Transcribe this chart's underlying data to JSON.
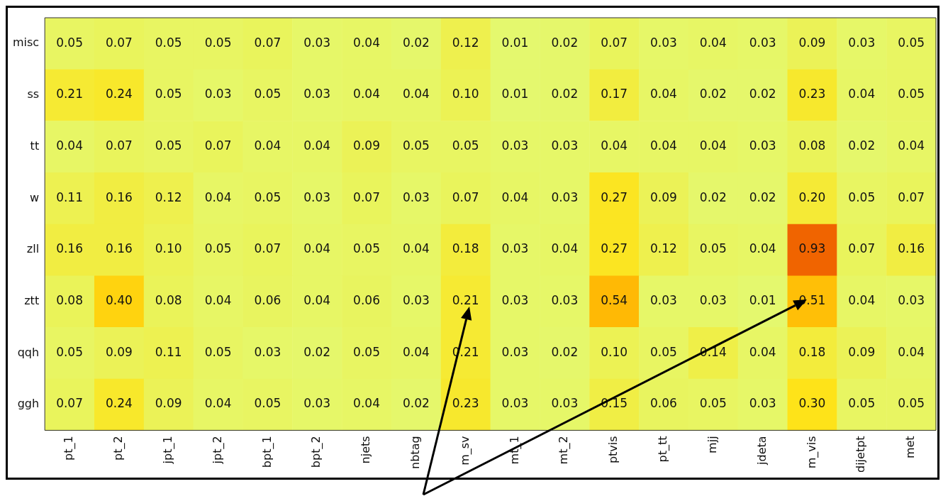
{
  "chart_data": {
    "type": "heatmap",
    "categories": [
      "pt_1",
      "pt_2",
      "jpt_1",
      "jpt_2",
      "bpt_1",
      "bpt_2",
      "njets",
      "nbtag",
      "m_sv",
      "mt_1",
      "mt_2",
      "ptvis",
      "pt_tt",
      "mjj",
      "jdeta",
      "m_vis",
      "dijetpt",
      "met"
    ],
    "y_categories": [
      "misc",
      "ss",
      "tt",
      "w",
      "zll",
      "ztt",
      "qqh",
      "ggh"
    ],
    "cells": [
      [
        0.05,
        0.07,
        0.05,
        0.05,
        0.07,
        0.03,
        0.04,
        0.02,
        0.12,
        0.01,
        0.02,
        0.07,
        0.03,
        0.04,
        0.03,
        0.09,
        0.03,
        0.05
      ],
      [
        0.21,
        0.24,
        0.05,
        0.03,
        0.05,
        0.03,
        0.04,
        0.04,
        0.1,
        0.01,
        0.02,
        0.17,
        0.04,
        0.02,
        0.02,
        0.23,
        0.04,
        0.05
      ],
      [
        0.04,
        0.07,
        0.05,
        0.07,
        0.04,
        0.04,
        0.09,
        0.05,
        0.05,
        0.03,
        0.03,
        0.04,
        0.04,
        0.04,
        0.03,
        0.08,
        0.02,
        0.04
      ],
      [
        0.11,
        0.16,
        0.12,
        0.04,
        0.05,
        0.03,
        0.07,
        0.03,
        0.07,
        0.04,
        0.03,
        0.27,
        0.09,
        0.02,
        0.02,
        0.2,
        0.05,
        0.07
      ],
      [
        0.16,
        0.16,
        0.1,
        0.05,
        0.07,
        0.04,
        0.05,
        0.04,
        0.18,
        0.03,
        0.04,
        0.27,
        0.12,
        0.05,
        0.04,
        0.93,
        0.07,
        0.16
      ],
      [
        0.08,
        0.4,
        0.08,
        0.04,
        0.06,
        0.04,
        0.06,
        0.03,
        0.21,
        0.03,
        0.03,
        0.54,
        0.03,
        0.03,
        0.01,
        0.51,
        0.04,
        0.03
      ],
      [
        0.05,
        0.09,
        0.11,
        0.05,
        0.03,
        0.02,
        0.05,
        0.04,
        0.21,
        0.03,
        0.02,
        0.1,
        0.05,
        0.14,
        0.04,
        0.18,
        0.09,
        0.04
      ],
      [
        0.07,
        0.24,
        0.09,
        0.04,
        0.05,
        0.03,
        0.04,
        0.02,
        0.23,
        0.03,
        0.03,
        0.15,
        0.06,
        0.05,
        0.03,
        0.3,
        0.05,
        0.05
      ]
    ],
    "cell_labels": [
      [
        "0.05",
        "0.07",
        "0.05",
        "0.05",
        "0.07",
        "0.03",
        "0.04",
        "0.02",
        "0.12",
        "0.01",
        "0.02",
        "0.07",
        "0.03",
        "0.04",
        "0.03",
        "0.09",
        "0.03",
        "0.05"
      ],
      [
        "0.21",
        "0.24",
        "0.05",
        "0.03",
        "0.05",
        "0.03",
        "0.04",
        "0.04",
        "0.10",
        "0.01",
        "0.02",
        "0.17",
        "0.04",
        "0.02",
        "0.02",
        "0.23",
        "0.04",
        "0.05"
      ],
      [
        "0.04",
        "0.07",
        "0.05",
        "0.07",
        "0.04",
        "0.04",
        "0.09",
        "0.05",
        "0.05",
        "0.03",
        "0.03",
        "0.04",
        "0.04",
        "0.04",
        "0.03",
        "0.08",
        "0.02",
        "0.04"
      ],
      [
        "0.11",
        "0.16",
        "0.12",
        "0.04",
        "0.05",
        "0.03",
        "0.07",
        "0.03",
        "0.07",
        "0.04",
        "0.03",
        "0.27",
        "0.09",
        "0.02",
        "0.02",
        "0.20",
        "0.05",
        "0.07"
      ],
      [
        "0.16",
        "0.16",
        "0.10",
        "0.05",
        "0.07",
        "0.04",
        "0.05",
        "0.04",
        "0.18",
        "0.03",
        "0.04",
        "0.27",
        "0.12",
        "0.05",
        "0.04",
        "0.93",
        "0.07",
        "0.16"
      ],
      [
        "0.08",
        "0.40",
        "0.08",
        "0.04",
        "0.06",
        "0.04",
        "0.06",
        "0.03",
        "0.21",
        "0.03",
        "0.03",
        "0.54",
        "0.03",
        "0.03",
        "0.01",
        "0.51",
        "0.04",
        "0.03"
      ],
      [
        "0.05",
        "0.09",
        "0.11",
        "0.05",
        "0.03",
        "0.02",
        "0.05",
        "0.04",
        "0.21",
        "0.03",
        "0.02",
        "0.10",
        "0.05",
        "0.14",
        "0.04",
        "0.18",
        "0.09",
        "0.04"
      ],
      [
        "0.07",
        "0.24",
        "0.09",
        "0.04",
        "0.05",
        "0.03",
        "0.04",
        "0.02",
        "0.23",
        "0.03",
        "0.03",
        "0.15",
        "0.06",
        "0.05",
        "0.03",
        "0.30",
        "0.05",
        "0.05"
      ]
    ],
    "data_labels": true
  }
}
